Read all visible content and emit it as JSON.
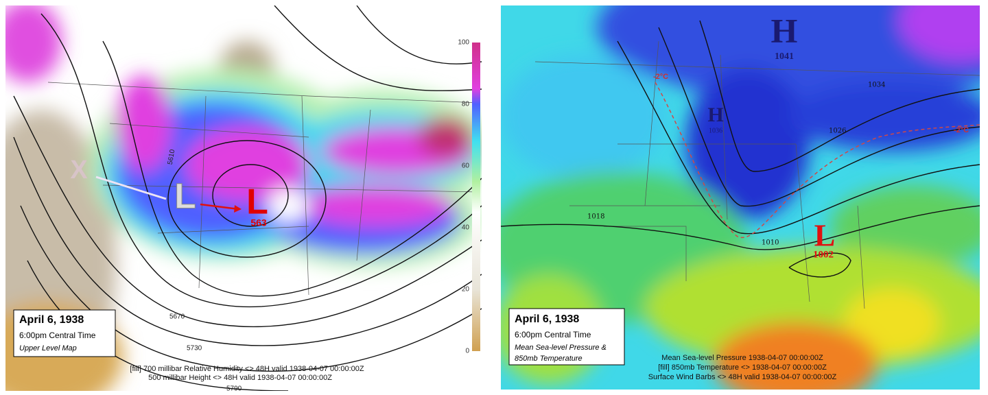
{
  "left_map": {
    "colorbar_labels": [
      100,
      80,
      60,
      40,
      20,
      0
    ],
    "contour_labels": [
      5610,
      5670,
      5730,
      5790
    ],
    "markers": {
      "origin": "X",
      "previous_low": "L",
      "low": "L",
      "low_value": 563
    },
    "info_box": {
      "date": "April 6, 1938",
      "time": "6:00pm Central Time",
      "caption": "Upper Level Map"
    },
    "footer": [
      "[fill] 700 millibar Relative Humidity <> 48H valid 1938-04-07 00:00:00Z",
      "500 millibar Height <> 48H valid 1938-04-07 00:00:00Z"
    ]
  },
  "right_map": {
    "highs": [
      {
        "symbol": "H",
        "pressure": 1041
      },
      {
        "symbol": "H",
        "pressure": 1036
      }
    ],
    "low": {
      "symbol": "L",
      "pressure": 1002
    },
    "temperature_labels": [
      "-2°C",
      "-2°C"
    ],
    "isobar_labels": [
      1034,
      1026,
      1018,
      1010
    ],
    "info_box": {
      "date": "April 6, 1938",
      "time": "6:00pm Central Time",
      "caption": [
        "Mean Sea-level Pressure &",
        "850mb Temperature"
      ]
    },
    "footer": [
      "Mean Sea-level Pressure 1938-04-07 00:00:00Z",
      "[fill] 850mb Temperature <> 1938-04-07 00:00:00Z",
      "Surface Wind Barbs <> 48H valid 1938-04-07 00:00:00Z"
    ]
  }
}
